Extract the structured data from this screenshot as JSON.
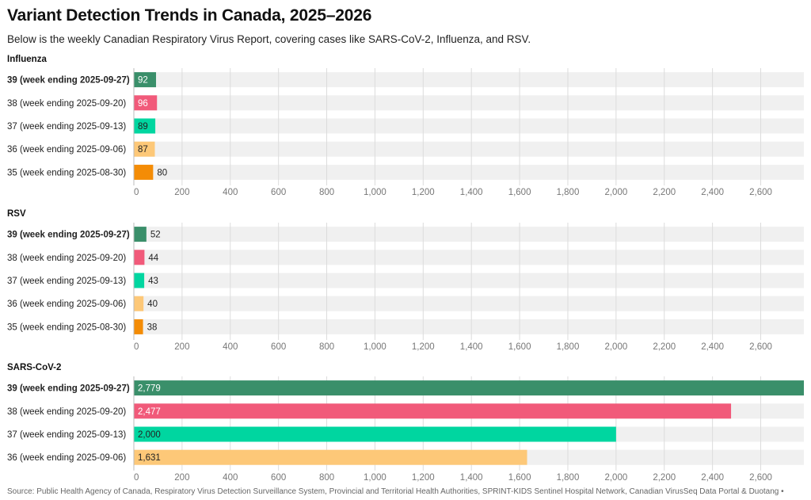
{
  "title": "Variant Detection Trends in Canada, 2025–2026",
  "subtitle": "Below is the weekly Canadian Respiratory Virus Report, covering cases like SARS-CoV-2, Influenza, and RSV.",
  "footer": "Source: Public Health Agency of Canada, Respiratory Virus Detection Surveillance System, Provincial and Territorial Health Authorities, SPRINT-KIDS Sentinel Hospital Network, Canadian VirusSeq Data Portal & Duotang •",
  "colors": {
    "week39": "#3a8f6a",
    "week38": "#f15a7a",
    "week37": "#00d6a0",
    "week36": "#fdc878",
    "week35": "#f48c06",
    "track": "#f0f0f0",
    "grid": "#dcdcdc"
  },
  "chart_data": [
    {
      "type": "bar",
      "orientation": "horizontal",
      "title": "Influenza",
      "categories": [
        "39 (week ending 2025-09-27)",
        "38 (week ending 2025-09-20)",
        "37 (week ending 2025-09-13)",
        "36 (week ending 2025-09-06)",
        "35 (week ending 2025-08-30)"
      ],
      "values": [
        92,
        96,
        89,
        87,
        80
      ],
      "value_labels": [
        "92",
        "96",
        "89",
        "87",
        "80"
      ],
      "xlim": [
        0,
        2779
      ],
      "ticks": [
        0,
        200,
        400,
        600,
        800,
        1000,
        1200,
        1400,
        1600,
        1800,
        2000,
        2200,
        2400,
        2600
      ],
      "tick_labels": [
        "0",
        "200",
        "400",
        "600",
        "800",
        "1,000",
        "1,200",
        "1,400",
        "1,600",
        "1,800",
        "2,000",
        "2,200",
        "2,400",
        "2,600"
      ],
      "grid": true
    },
    {
      "type": "bar",
      "orientation": "horizontal",
      "title": "RSV",
      "categories": [
        "39 (week ending 2025-09-27)",
        "38 (week ending 2025-09-20)",
        "37 (week ending 2025-09-13)",
        "36 (week ending 2025-09-06)",
        "35 (week ending 2025-08-30)"
      ],
      "values": [
        52,
        44,
        43,
        40,
        38
      ],
      "value_labels": [
        "52",
        "44",
        "43",
        "40",
        "38"
      ],
      "xlim": [
        0,
        2779
      ],
      "ticks": [
        0,
        200,
        400,
        600,
        800,
        1000,
        1200,
        1400,
        1600,
        1800,
        2000,
        2200,
        2400,
        2600
      ],
      "tick_labels": [
        "0",
        "200",
        "400",
        "600",
        "800",
        "1,000",
        "1,200",
        "1,400",
        "1,600",
        "1,800",
        "2,000",
        "2,200",
        "2,400",
        "2,600"
      ],
      "grid": true
    },
    {
      "type": "bar",
      "orientation": "horizontal",
      "title": "SARS-CoV-2",
      "categories": [
        "39 (week ending 2025-09-27)",
        "38 (week ending 2025-09-20)",
        "37 (week ending 2025-09-13)",
        "36 (week ending 2025-09-06)"
      ],
      "values": [
        2779,
        2477,
        2000,
        1631
      ],
      "value_labels": [
        "2,779",
        "2,477",
        "2,000",
        "1,631"
      ],
      "xlim": [
        0,
        2779
      ],
      "ticks": [
        0,
        200,
        400,
        600,
        800,
        1000,
        1200,
        1400,
        1600,
        1800,
        2000,
        2200,
        2400,
        2600
      ],
      "tick_labels": [
        "0",
        "200",
        "400",
        "600",
        "800",
        "1,000",
        "1,200",
        "1,400",
        "1,600",
        "1,800",
        "2,000",
        "2,200",
        "2,400",
        "2,600"
      ],
      "grid": true
    }
  ]
}
